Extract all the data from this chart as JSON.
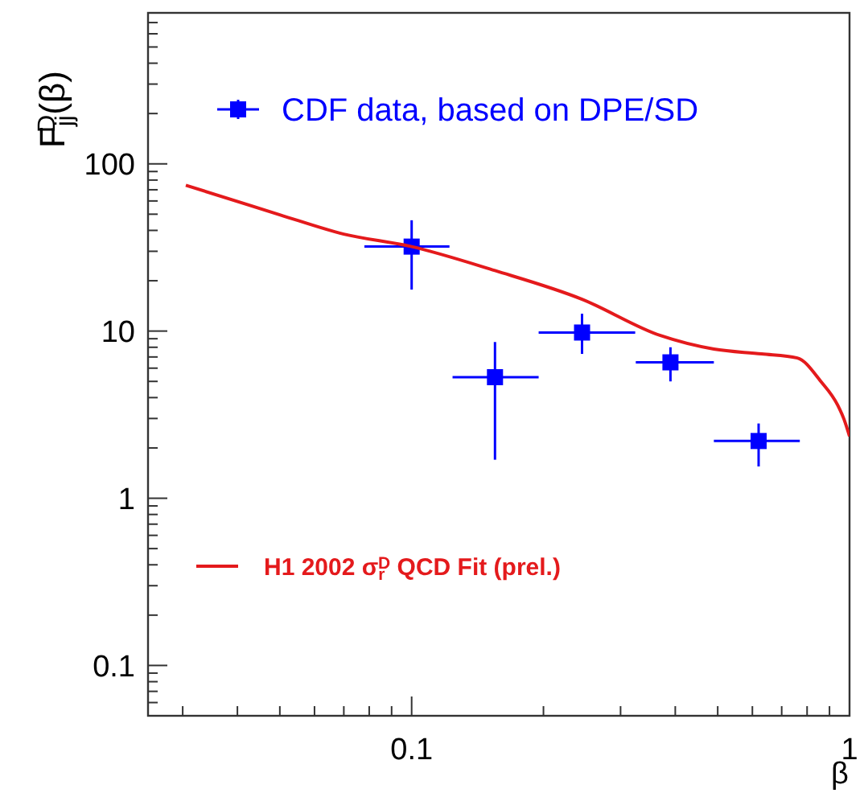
{
  "chart_data": {
    "type": "scatter",
    "xlabel": "β",
    "ylabel": "F$_{jj}$$^{D}$(β)",
    "log": "xy",
    "xlim": [
      0.025,
      1
    ],
    "ylim": [
      0.05,
      800
    ],
    "xticks": [
      {
        "value": 0.03,
        "label": null
      },
      {
        "value": 0.04,
        "label": null
      },
      {
        "value": 0.05,
        "label": null
      },
      {
        "value": 0.06,
        "label": null
      },
      {
        "value": 0.07,
        "label": null
      },
      {
        "value": 0.08,
        "label": null
      },
      {
        "value": 0.09,
        "label": null
      },
      0.1,
      {
        "value": 0.2,
        "label": null
      },
      {
        "value": 0.3,
        "label": null
      },
      {
        "value": 0.4,
        "label": null
      },
      {
        "value": 0.5,
        "label": null
      },
      {
        "value": 0.6,
        "label": null
      },
      {
        "value": 0.7,
        "label": null
      },
      {
        "value": 0.8,
        "label": null
      },
      {
        "value": 0.9,
        "label": null
      },
      1
    ],
    "yticks": [
      {
        "value": 0.05,
        "label": null
      },
      {
        "value": 0.06,
        "label": null
      },
      {
        "value": 0.07,
        "label": null
      },
      {
        "value": 0.08,
        "label": null
      },
      {
        "value": 0.09,
        "label": null
      },
      0.1,
      {
        "value": 0.2,
        "label": null
      },
      {
        "value": 0.3,
        "label": null
      },
      {
        "value": 0.4,
        "label": null
      },
      {
        "value": 0.5,
        "label": null
      },
      {
        "value": 0.6,
        "label": null
      },
      {
        "value": 0.7,
        "label": null
      },
      {
        "value": 0.8,
        "label": null
      },
      {
        "value": 0.9,
        "label": null
      },
      1,
      {
        "value": 2,
        "label": null
      },
      {
        "value": 3,
        "label": null
      },
      {
        "value": 4,
        "label": null
      },
      {
        "value": 5,
        "label": null
      },
      {
        "value": 6,
        "label": null
      },
      {
        "value": 7,
        "label": null
      },
      {
        "value": 8,
        "label": null
      },
      {
        "value": 9,
        "label": null
      },
      10,
      {
        "value": 20,
        "label": null
      },
      {
        "value": 30,
        "label": null
      },
      {
        "value": 40,
        "label": null
      },
      {
        "value": 50,
        "label": null
      },
      {
        "value": 60,
        "label": null
      },
      {
        "value": 70,
        "label": null
      },
      {
        "value": 80,
        "label": null
      },
      {
        "value": 90,
        "label": null
      },
      100,
      {
        "value": 200,
        "label": null
      },
      {
        "value": 300,
        "label": null
      },
      {
        "value": 400,
        "label": null
      },
      {
        "value": 500,
        "label": null
      },
      {
        "value": 600,
        "label": null
      },
      {
        "value": 700,
        "label": null
      },
      {
        "value": 800,
        "label": null
      }
    ],
    "grid": false,
    "legend": "left",
    "marker": "square",
    "series": [
      {
        "name": "CDF data, based on DPE/SD",
        "color": "#0000ff",
        "x": [
          0.1,
          0.155,
          0.245,
          0.39,
          0.62
        ],
        "values": [
          32,
          5.3,
          9.8,
          6.5,
          2.2
        ],
        "errors": [
          [
            17.7,
            46
          ],
          [
            1.7,
            8.6
          ],
          [
            7.3,
            12.7
          ],
          [
            5.0,
            8.0
          ],
          [
            1.55,
            2.8
          ]
        ],
        "xerrors": [
          [
            0.078,
            0.122
          ],
          [
            0.124,
            0.195
          ],
          [
            0.195,
            0.324
          ],
          [
            0.325,
            0.49
          ],
          [
            0.49,
            0.77
          ]
        ]
      },
      {
        "name": "H1 2002 σ$_{r}$$^{D}$ QCD Fit (prel.)",
        "type": "line",
        "color": "#e41a1c",
        "line_style": "solid",
        "marker": "none",
        "x": [
          0.0305,
          0.05,
          0.07,
          0.1,
          0.155,
          0.245,
          0.37,
          0.49,
          0.63,
          0.76,
          0.86,
          0.94,
          0.97,
          1.0
        ],
        "values": [
          74.5,
          49.6,
          38,
          32,
          23,
          15.5,
          9.4,
          7.8,
          7.3,
          6.9,
          5.0,
          3.6,
          3.0,
          2.35
        ]
      }
    ]
  }
}
